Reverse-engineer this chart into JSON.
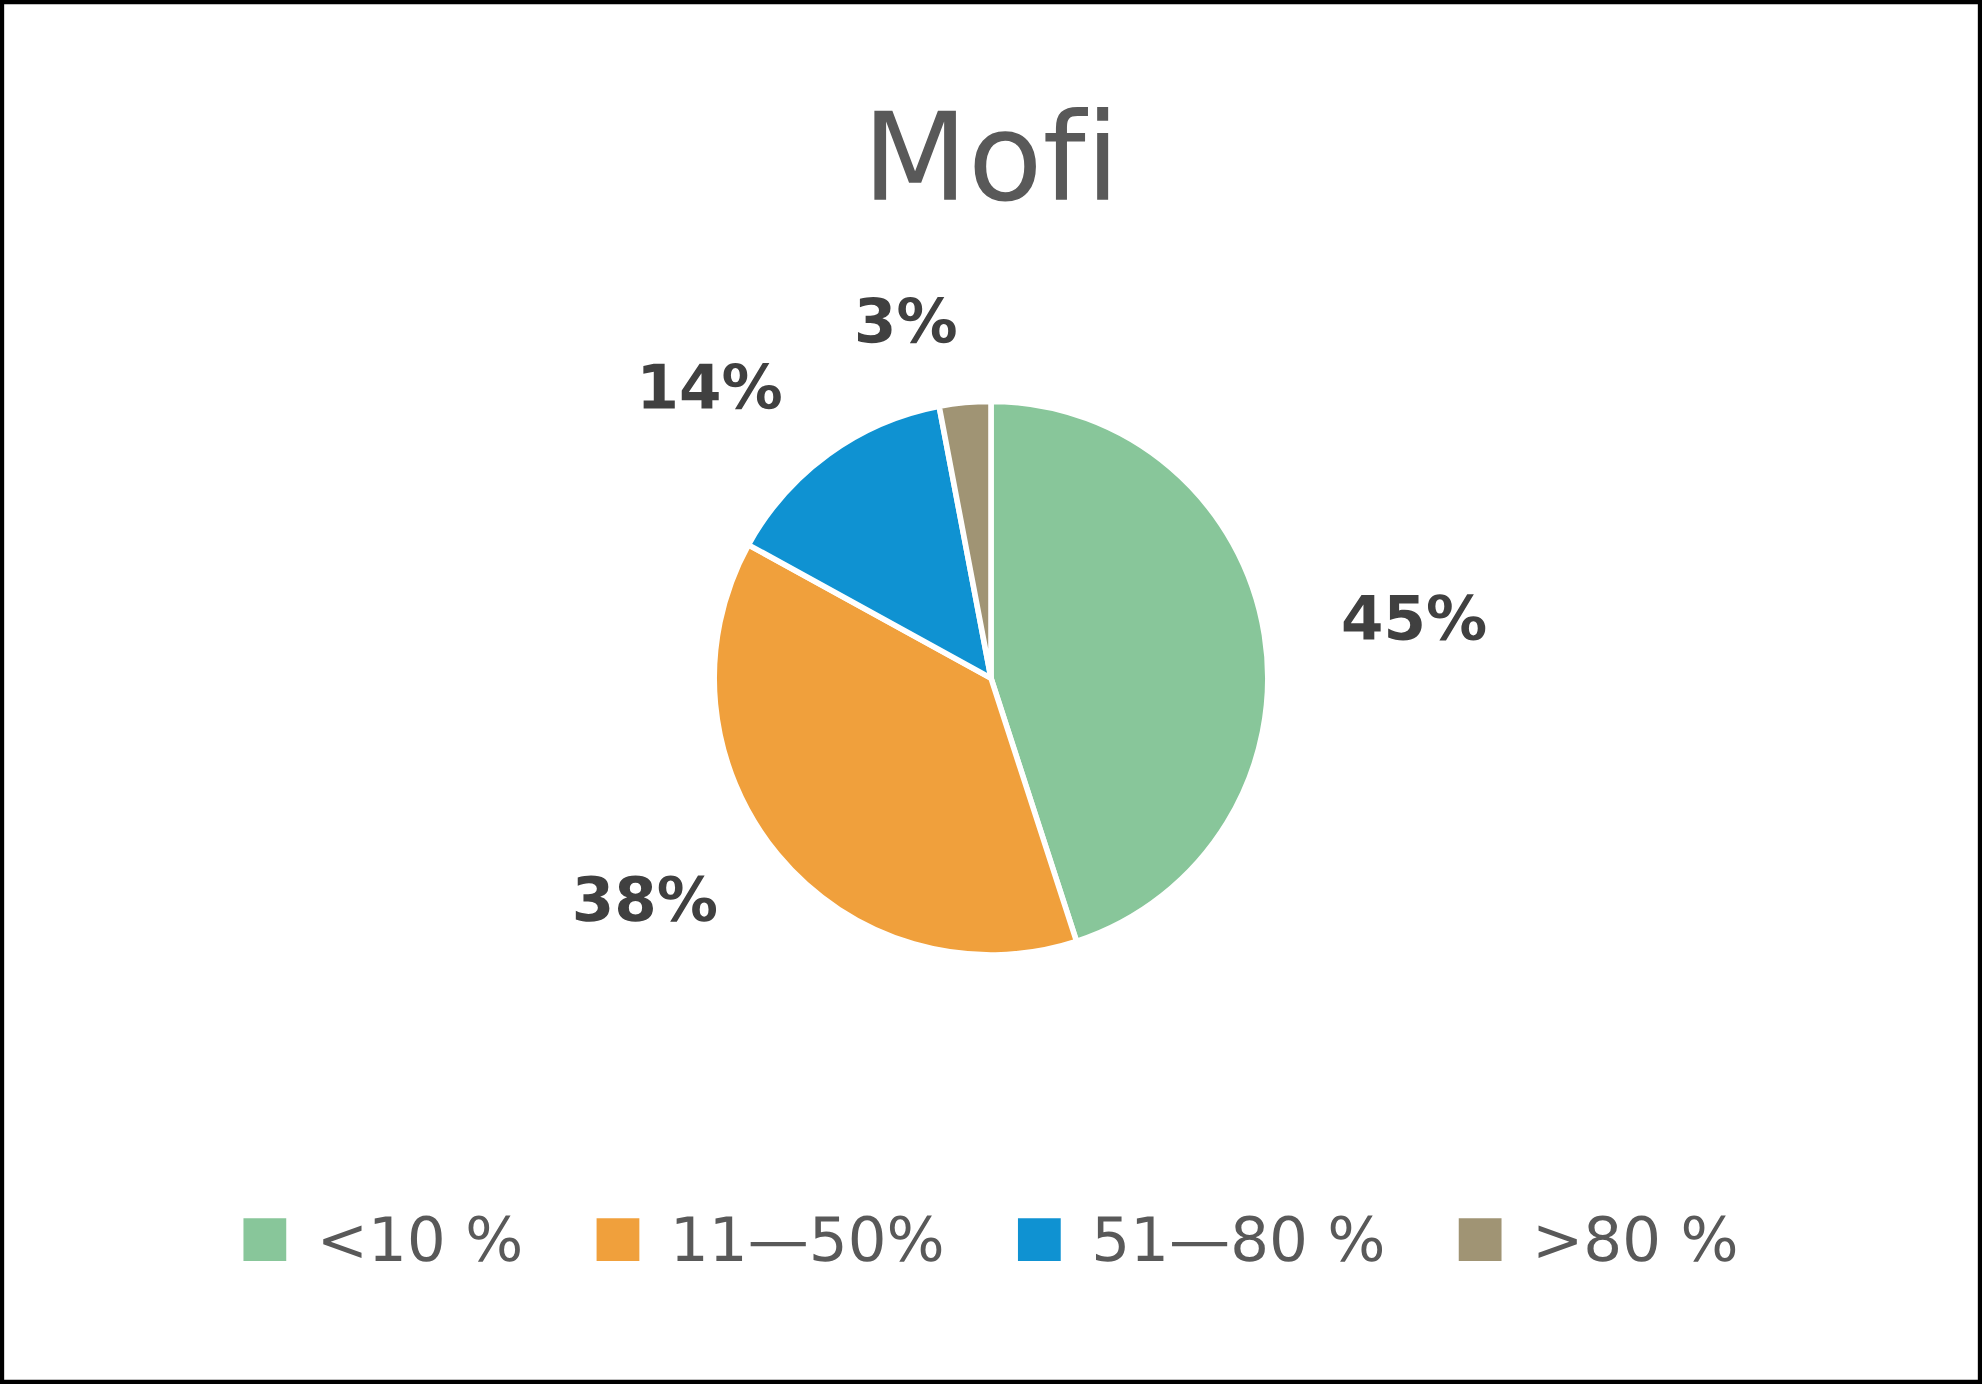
{
  "chart_data": {
    "type": "pie",
    "title": "Mofi",
    "categories": [
      "<10 %",
      "11—50%",
      "51—80 %",
      ">80 %"
    ],
    "values": [
      45,
      38,
      14,
      3
    ],
    "colors": [
      "#88c69a",
      "#f0a03c",
      "#0f92d2",
      "#a09474"
    ],
    "value_labels": [
      "45%",
      "38%",
      "14%",
      "3%"
    ],
    "legend": "bottom"
  }
}
